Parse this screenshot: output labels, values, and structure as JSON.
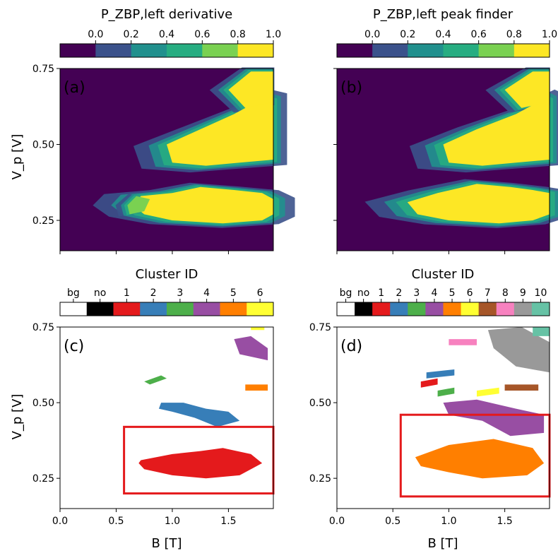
{
  "figure": {
    "panel_labels": [
      "(a)",
      "(b)",
      "(c)",
      "(d)"
    ],
    "colors": {
      "viridis": [
        "#440154",
        "#3b528b",
        "#21908d",
        "#27ad81",
        "#7ad151",
        "#fde725"
      ],
      "box": "#e41a1c",
      "cluster_ids_4": [
        "#ffffff",
        "#000000",
        "#e41a1c",
        "#377eb8",
        "#4daf4a",
        "#984ea3",
        "#ff7f00",
        "#ffff33"
      ],
      "cluster_ids_10": [
        "#ffffff",
        "#000000",
        "#e41a1c",
        "#377eb8",
        "#4daf4a",
        "#984ea3",
        "#ff7f00",
        "#ffff33",
        "#a65628",
        "#f781bf",
        "#999999",
        "#66c2a5"
      ]
    }
  },
  "chart_data": [
    {
      "panel": "a",
      "type": "heatmap",
      "colorbar_title": "P_ZBP,left derivative",
      "colorbar_ticks": [
        "0.0",
        "0.2",
        "0.4",
        "0.6",
        "0.8",
        "1.0"
      ],
      "colorbar_levels": [
        0,
        0.2,
        0.4,
        0.6,
        0.8,
        1.0
      ],
      "ylabel": "V_p [V]",
      "xlim": [
        0.0,
        1.9
      ],
      "ylim": [
        0.15,
        0.75
      ],
      "yticks": [
        "0.25",
        "0.50",
        "0.75"
      ],
      "regions": [
        {
          "level": 1.0,
          "x": [
            1.0,
            1.25,
            1.55,
            1.8,
            1.9,
            1.9,
            1.8,
            1.45,
            1.0,
            0.75,
            0.65,
            0.72
          ],
          "y": [
            0.34,
            0.36,
            0.35,
            0.34,
            0.32,
            0.27,
            0.25,
            0.24,
            0.25,
            0.27,
            0.3,
            0.33
          ]
        },
        {
          "level": 0.8,
          "x": [
            0.6,
            0.68,
            0.8,
            0.75,
            0.62
          ],
          "y": [
            0.3,
            0.33,
            0.32,
            0.28,
            0.27
          ]
        },
        {
          "level": 1.0,
          "x": [
            0.95,
            1.25,
            1.55,
            1.8,
            1.9,
            1.9,
            1.6,
            1.3,
            1.0
          ],
          "y": [
            0.5,
            0.55,
            0.6,
            0.65,
            0.64,
            0.45,
            0.44,
            0.43,
            0.44
          ]
        },
        {
          "level": 1.0,
          "x": [
            1.5,
            1.7,
            1.9,
            1.9,
            1.65
          ],
          "y": [
            0.68,
            0.74,
            0.74,
            0.64,
            0.62
          ]
        }
      ]
    },
    {
      "panel": "b",
      "type": "heatmap",
      "colorbar_title": "P_ZBP,left peak finder",
      "colorbar_ticks": [
        "0.0",
        "0.2",
        "0.4",
        "0.6",
        "0.8",
        "1.0"
      ],
      "colorbar_levels": [
        0,
        0.2,
        0.4,
        0.6,
        0.8,
        1.0
      ],
      "xlim": [
        0.0,
        1.9
      ],
      "ylim": [
        0.15,
        0.75
      ],
      "regions": [
        {
          "level": 1.0,
          "x": [
            0.9,
            1.25,
            1.55,
            1.75,
            1.9,
            1.9,
            1.75,
            1.45,
            1.0,
            0.72,
            0.63
          ],
          "y": [
            0.34,
            0.37,
            0.36,
            0.35,
            0.34,
            0.27,
            0.25,
            0.24,
            0.25,
            0.27,
            0.31
          ]
        },
        {
          "level": 1.0,
          "x": [
            0.95,
            1.25,
            1.6,
            1.85,
            1.9,
            1.9,
            1.6,
            1.3,
            1.0
          ],
          "y": [
            0.5,
            0.55,
            0.6,
            0.65,
            0.64,
            0.45,
            0.44,
            0.43,
            0.44
          ]
        },
        {
          "level": 1.0,
          "x": [
            1.5,
            1.75,
            1.9,
            1.9,
            1.65
          ],
          "y": [
            0.68,
            0.74,
            0.74,
            0.64,
            0.62
          ]
        }
      ]
    },
    {
      "panel": "c",
      "type": "scatter",
      "colorbar_title": "Cluster ID",
      "colorbar_ticks": [
        "bg",
        "no",
        "1",
        "2",
        "3",
        "4",
        "5",
        "6"
      ],
      "xlabel": "B [T]",
      "ylabel": "V_p [V]",
      "xlim": [
        0.0,
        1.9
      ],
      "ylim": [
        0.15,
        0.75
      ],
      "xticks": [
        "0.0",
        "0.5",
        "1.0",
        "1.5"
      ],
      "yticks": [
        "0.25",
        "0.50",
        "0.75"
      ],
      "highlight_box": {
        "x": [
          0.57,
          1.9
        ],
        "y": [
          0.2,
          0.42
        ]
      },
      "clusters": [
        {
          "id": "1",
          "x": [
            0.72,
            1.0,
            1.25,
            1.45,
            1.7,
            1.8,
            1.6,
            1.3,
            1.0,
            0.75,
            0.7
          ],
          "y": [
            0.31,
            0.33,
            0.34,
            0.35,
            0.33,
            0.3,
            0.26,
            0.25,
            0.26,
            0.28,
            0.3
          ]
        },
        {
          "id": "2",
          "x": [
            0.9,
            1.1,
            1.3,
            1.5,
            1.6,
            1.4,
            1.2,
            1.0,
            0.88
          ],
          "y": [
            0.5,
            0.5,
            0.48,
            0.47,
            0.44,
            0.42,
            0.45,
            0.47,
            0.48
          ]
        },
        {
          "id": "3",
          "x": [
            0.75,
            0.9,
            0.95,
            0.8
          ],
          "y": [
            0.57,
            0.59,
            0.58,
            0.56
          ]
        },
        {
          "id": "4",
          "x": [
            1.55,
            1.7,
            1.85,
            1.85,
            1.6
          ],
          "y": [
            0.71,
            0.72,
            0.68,
            0.64,
            0.66
          ]
        },
        {
          "id": "5",
          "x": [
            1.65,
            1.85,
            1.85,
            1.65
          ],
          "y": [
            0.56,
            0.56,
            0.54,
            0.54
          ]
        },
        {
          "id": "6",
          "x": [
            1.7,
            1.82,
            1.82,
            1.7
          ],
          "y": [
            0.75,
            0.75,
            0.74,
            0.74
          ]
        }
      ]
    },
    {
      "panel": "d",
      "type": "scatter",
      "colorbar_title": "Cluster ID",
      "colorbar_ticks": [
        "bg",
        "no",
        "1",
        "2",
        "3",
        "4",
        "5",
        "6",
        "7",
        "8",
        "9",
        "10"
      ],
      "xlabel": "B [T]",
      "xlim": [
        0.0,
        1.9
      ],
      "ylim": [
        0.15,
        0.75
      ],
      "xticks": [
        "0.0",
        "0.5",
        "1.0",
        "1.5"
      ],
      "highlight_box": {
        "x": [
          0.57,
          1.9
        ],
        "y": [
          0.19,
          0.46
        ]
      },
      "clusters": [
        {
          "id": "1",
          "x": [
            0.75,
            0.9,
            0.9,
            0.75
          ],
          "y": [
            0.57,
            0.58,
            0.56,
            0.55
          ]
        },
        {
          "id": "2",
          "x": [
            0.8,
            1.05,
            1.05,
            0.8
          ],
          "y": [
            0.6,
            0.61,
            0.59,
            0.58
          ]
        },
        {
          "id": "3",
          "x": [
            0.9,
            1.05,
            1.05,
            0.9
          ],
          "y": [
            0.54,
            0.55,
            0.53,
            0.52
          ]
        },
        {
          "id": "4",
          "x": [
            0.95,
            1.25,
            1.6,
            1.85,
            1.85,
            1.55,
            1.3,
            1.0
          ],
          "y": [
            0.5,
            0.51,
            0.48,
            0.46,
            0.4,
            0.39,
            0.44,
            0.46
          ]
        },
        {
          "id": "5",
          "x": [
            0.7,
            1.0,
            1.4,
            1.75,
            1.85,
            1.7,
            1.3,
            1.0,
            0.75
          ],
          "y": [
            0.32,
            0.36,
            0.38,
            0.35,
            0.3,
            0.26,
            0.25,
            0.27,
            0.29
          ]
        },
        {
          "id": "6",
          "x": [
            1.25,
            1.45,
            1.45,
            1.25
          ],
          "y": [
            0.54,
            0.55,
            0.53,
            0.52
          ]
        },
        {
          "id": "7",
          "x": [
            1.5,
            1.8,
            1.8,
            1.5
          ],
          "y": [
            0.56,
            0.56,
            0.54,
            0.54
          ]
        },
        {
          "id": "8",
          "x": [
            1.0,
            1.25,
            1.25,
            1.0
          ],
          "y": [
            0.71,
            0.71,
            0.69,
            0.69
          ]
        },
        {
          "id": "9",
          "x": [
            1.35,
            1.65,
            1.9,
            1.9,
            1.6,
            1.4
          ],
          "y": [
            0.74,
            0.75,
            0.7,
            0.6,
            0.62,
            0.68
          ]
        },
        {
          "id": "10",
          "x": [
            1.75,
            1.9,
            1.9,
            1.75
          ],
          "y": [
            0.75,
            0.75,
            0.72,
            0.72
          ]
        }
      ]
    }
  ]
}
